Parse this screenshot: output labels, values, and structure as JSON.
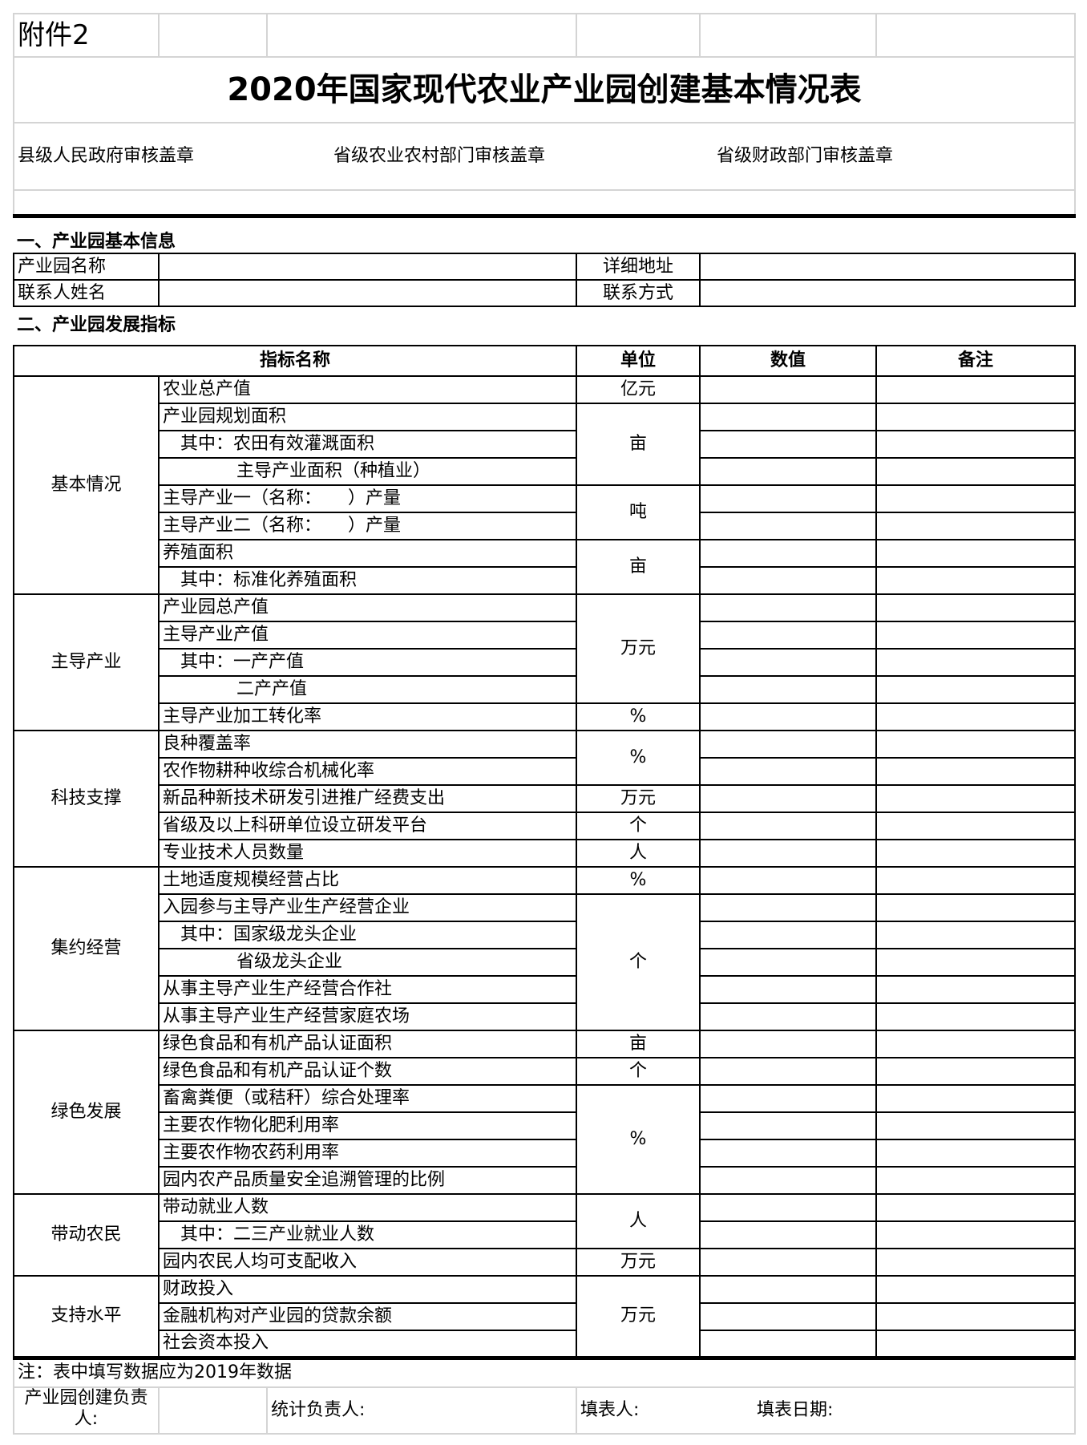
{
  "annex_label": "附件2",
  "title": "2020年国家现代农业产业园创建基本情况表",
  "stamps": [
    "县级人民政府审核盖章",
    "省级农业农村部门审核盖章",
    "省级财政部门审核盖章"
  ],
  "section1": {
    "heading": "一、产业园基本信息",
    "park_name_label": "产业园名称",
    "address_label": "详细地址",
    "contact_name_label": "联系人姓名",
    "contact_method_label": "联系方式"
  },
  "section2": {
    "heading": "二、产业园发展指标",
    "columns": [
      "指标名称",
      "单位",
      "数值",
      "备注"
    ],
    "groups": [
      {
        "name": "基本情况",
        "rows": [
          {
            "label": "农业总产值",
            "indent": 0,
            "unit": "亿元",
            "unit_span": 1
          },
          {
            "label": "产业园规划面积",
            "indent": 0,
            "unit": "亩",
            "unit_span": 3
          },
          {
            "label": "其中：农田有效灌溉面积",
            "indent": 1
          },
          {
            "label": "主导产业面积（种植业）",
            "indent": 2
          },
          {
            "label": "主导产业一（名称：　　）产量",
            "indent": 0,
            "unit": "吨",
            "unit_span": 2
          },
          {
            "label": "主导产业二（名称：　　）产量",
            "indent": 0
          },
          {
            "label": "养殖面积",
            "indent": 0,
            "unit": "亩",
            "unit_span": 2
          },
          {
            "label": "其中：标准化养殖面积",
            "indent": 1
          }
        ]
      },
      {
        "name": "主导产业",
        "rows": [
          {
            "label": "产业园总产值",
            "indent": 0,
            "unit": "万元",
            "unit_span": 4
          },
          {
            "label": "主导产业产值",
            "indent": 0
          },
          {
            "label": "其中：一产产值",
            "indent": 1
          },
          {
            "label": "二产产值",
            "indent": 2
          },
          {
            "label": "主导产业加工转化率",
            "indent": 0,
            "unit": "%",
            "unit_span": 1
          }
        ]
      },
      {
        "name": "科技支撑",
        "rows": [
          {
            "label": "良种覆盖率",
            "indent": 0,
            "unit": "%",
            "unit_span": 2
          },
          {
            "label": "农作物耕种收综合机械化率",
            "indent": 0
          },
          {
            "label": "新品种新技术研发引进推广经费支出",
            "indent": 0,
            "unit": "万元",
            "unit_span": 1
          },
          {
            "label": "省级及以上科研单位设立研发平台",
            "indent": 0,
            "unit": "个",
            "unit_span": 1
          },
          {
            "label": "专业技术人员数量",
            "indent": 0,
            "unit": "人",
            "unit_span": 1
          }
        ]
      },
      {
        "name": "集约经营",
        "rows": [
          {
            "label": "土地适度规模经营占比",
            "indent": 0,
            "unit": "%",
            "unit_span": 1
          },
          {
            "label": "入园参与主导产业生产经营企业",
            "indent": 0,
            "unit": "个",
            "unit_span": 5
          },
          {
            "label": "其中：国家级龙头企业",
            "indent": 1
          },
          {
            "label": "省级龙头企业",
            "indent": 2
          },
          {
            "label": "从事主导产业生产经营合作社",
            "indent": 0
          },
          {
            "label": "从事主导产业生产经营家庭农场",
            "indent": 0
          }
        ]
      },
      {
        "name": "绿色发展",
        "rows": [
          {
            "label": "绿色食品和有机产品认证面积",
            "indent": 0,
            "unit": "亩",
            "unit_span": 1
          },
          {
            "label": "绿色食品和有机产品认证个数",
            "indent": 0,
            "unit": "个",
            "unit_span": 1
          },
          {
            "label": "畜禽粪便（或秸秆）综合处理率",
            "indent": 0,
            "unit": "%",
            "unit_span": 4
          },
          {
            "label": "主要农作物化肥利用率",
            "indent": 0
          },
          {
            "label": "主要农作物农药利用率",
            "indent": 0
          },
          {
            "label": "园内农产品质量安全追溯管理的比例",
            "indent": 0
          }
        ]
      },
      {
        "name": "带动农民",
        "rows": [
          {
            "label": "带动就业人数",
            "indent": 0,
            "unit": "人",
            "unit_span": 2
          },
          {
            "label": "其中：二三产业就业人数",
            "indent": 1
          },
          {
            "label": "园内农民人均可支配收入",
            "indent": 0,
            "unit": "万元",
            "unit_span": 1
          }
        ]
      },
      {
        "name": "支持水平",
        "rows": [
          {
            "label": "财政投入",
            "indent": 0,
            "unit": "万元",
            "unit_span": 3
          },
          {
            "label": "金融机构对产业园的贷款余额",
            "indent": 0
          },
          {
            "label": "社会资本投入",
            "indent": 0
          }
        ]
      }
    ]
  },
  "note": "注：表中填写数据应为2019年数据",
  "footer": {
    "park_leader_label": "产业园创建负责人:",
    "stats_leader_label": "统计负责人:",
    "filler_label": "填表人:",
    "date_label": "填表日期:"
  }
}
